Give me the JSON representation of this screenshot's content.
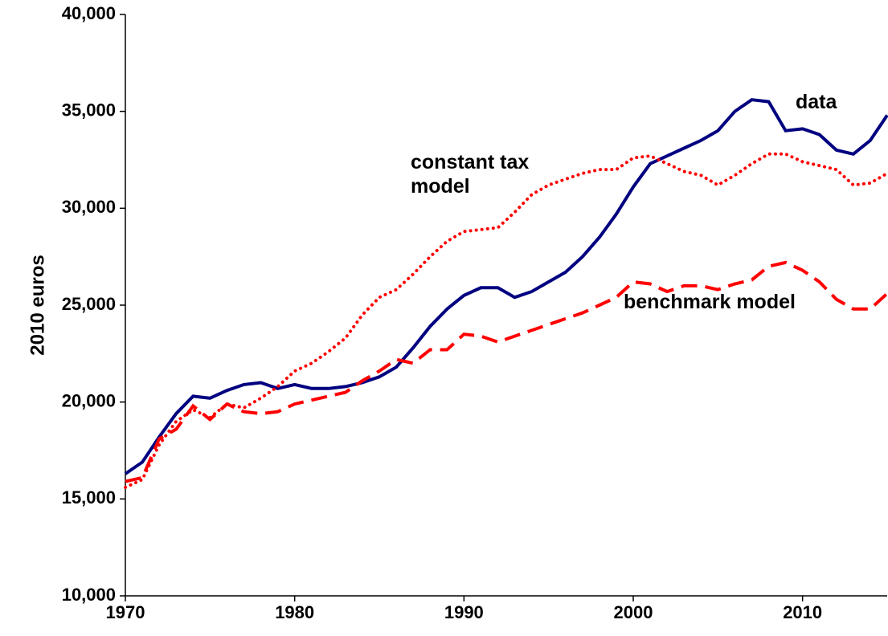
{
  "chart_data": {
    "type": "line",
    "y_label": "2010 euros",
    "x": [
      1970,
      1971,
      1972,
      1973,
      1974,
      1975,
      1976,
      1977,
      1978,
      1979,
      1980,
      1981,
      1982,
      1983,
      1984,
      1985,
      1986,
      1987,
      1988,
      1989,
      1990,
      1991,
      1992,
      1993,
      1994,
      1995,
      1996,
      1997,
      1998,
      1999,
      2000,
      2001,
      2002,
      2003,
      2004,
      2005,
      2006,
      2007,
      2008,
      2009,
      2010,
      2011,
      2012,
      2013,
      2014,
      2015
    ],
    "xlim": [
      1970,
      2015
    ],
    "xticks": [
      1970,
      1980,
      1990,
      2000,
      2010
    ],
    "ylim": [
      10000,
      40000
    ],
    "yticks": [
      {
        "value": 10000,
        "label": "10,000"
      },
      {
        "value": 15000,
        "label": "15,000"
      },
      {
        "value": 20000,
        "label": "20,000"
      },
      {
        "value": 25000,
        "label": "25,000"
      },
      {
        "value": 30000,
        "label": "30,000"
      },
      {
        "value": 35000,
        "label": "35,000"
      },
      {
        "value": 40000,
        "label": "40,000"
      }
    ],
    "series": [
      {
        "name": "data",
        "color": "#000080",
        "style": "solid",
        "values": [
          16300,
          16900,
          18200,
          19400,
          20300,
          20200,
          20600,
          20900,
          21000,
          20700,
          20900,
          20700,
          20700,
          20800,
          21000,
          21300,
          21800,
          22800,
          23900,
          24800,
          25500,
          25900,
          25900,
          25400,
          25700,
          26200,
          26700,
          27500,
          28500,
          29700,
          31100,
          32300,
          32700,
          33100,
          33500,
          34000,
          35000,
          35600,
          35500,
          34000,
          34100,
          33800,
          33000,
          32800,
          33500,
          34800
        ]
      },
      {
        "name": "constant tax model",
        "color": "#ff0000",
        "style": "dotted",
        "values": [
          15600,
          16000,
          17800,
          19000,
          19600,
          19200,
          19900,
          19700,
          20200,
          20800,
          21600,
          22000,
          22600,
          23300,
          24500,
          25400,
          25800,
          26600,
          27500,
          28300,
          28800,
          28900,
          29000,
          29800,
          30700,
          31200,
          31500,
          31800,
          32000,
          32000,
          32600,
          32700,
          32300,
          31900,
          31700,
          31200,
          31700,
          32300,
          32800,
          32800,
          32400,
          32200,
          32000,
          31200,
          31300,
          31800
        ]
      },
      {
        "name": "benchmark model",
        "color": "#ff0000",
        "style": "dashed",
        "values": [
          15900,
          16100,
          18100,
          18600,
          19800,
          19100,
          19900,
          19500,
          19400,
          19500,
          19900,
          20100,
          20300,
          20500,
          21100,
          21600,
          22200,
          22000,
          22700,
          22700,
          23500,
          23400,
          23100,
          23400,
          23700,
          24000,
          24300,
          24600,
          25000,
          25400,
          26200,
          26100,
          25700,
          26000,
          26000,
          25800,
          26100,
          26300,
          27000,
          27200,
          26800,
          26200,
          25300,
          24800,
          24800,
          25600
        ]
      }
    ]
  }
}
